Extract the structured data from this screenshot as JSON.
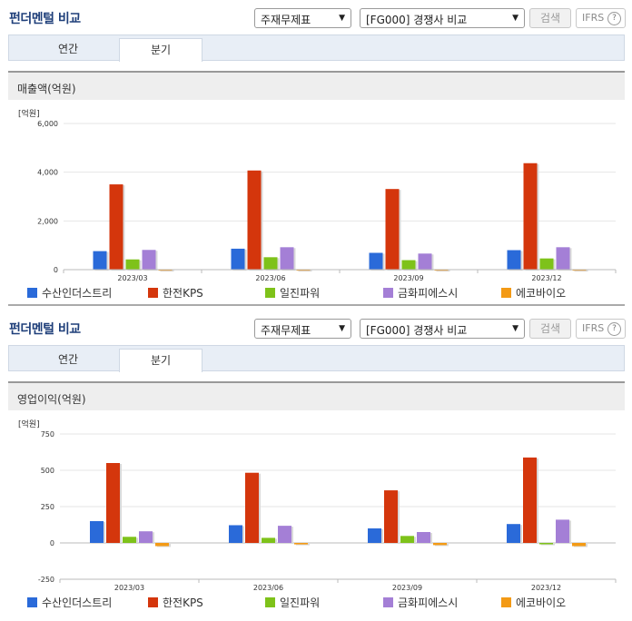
{
  "panels": [
    {
      "title": "펀더멘털 비교",
      "select1": "주재무제표",
      "select2": "[FG000] 경쟁사 비교",
      "search_label": "검색",
      "ifrs_label": "IFRS",
      "help_glyph": "?",
      "tabs": [
        {
          "label": "연간",
          "active": false
        },
        {
          "label": "분기",
          "active": true
        }
      ],
      "section_title": "매출액(억원)",
      "unit": "[억원]"
    },
    {
      "title": "펀더멘털 비교",
      "select1": "주재무제표",
      "select2": "[FG000] 경쟁사 비교",
      "search_label": "검색",
      "ifrs_label": "IFRS",
      "help_glyph": "?",
      "tabs": [
        {
          "label": "연간",
          "active": false
        },
        {
          "label": "분기",
          "active": true
        }
      ],
      "section_title": "영업이익(억원)",
      "unit": "[억원]"
    }
  ],
  "chart_data": [
    {
      "type": "bar",
      "categories": [
        "2023/03",
        "2023/06",
        "2023/09",
        "2023/12"
      ],
      "ylim": [
        0,
        6000
      ],
      "yticks": [
        0,
        2000,
        4000,
        6000
      ],
      "ytick_labels": [
        "0",
        "2,000",
        "4,000",
        "6,000"
      ],
      "ylabel": "[억원]",
      "series": [
        {
          "name": "수산인더스트리",
          "color": "#2a6ad9",
          "values": [
            760,
            860,
            690,
            800
          ]
        },
        {
          "name": "한전KPS",
          "color": "#d4360c",
          "values": [
            3500,
            4070,
            3310,
            4370
          ]
        },
        {
          "name": "일진파워",
          "color": "#7ec21a",
          "values": [
            420,
            510,
            390,
            460
          ]
        },
        {
          "name": "금화피에스시",
          "color": "#a47fd6",
          "values": [
            810,
            920,
            660,
            920
          ]
        },
        {
          "name": "에코바이오",
          "color": "#f39a15",
          "values": [
            15,
            15,
            15,
            15
          ]
        }
      ]
    },
    {
      "type": "bar",
      "categories": [
        "2023/03",
        "2023/06",
        "2023/09",
        "2023/12"
      ],
      "ylim": [
        -250,
        750
      ],
      "yticks": [
        -250,
        0,
        250,
        500,
        750
      ],
      "ytick_labels": [
        "-250",
        "0",
        "250",
        "500",
        "750"
      ],
      "ylabel": "[억원]",
      "series": [
        {
          "name": "수산인더스트리",
          "color": "#2a6ad9",
          "values": [
            150,
            122,
            100,
            130
          ]
        },
        {
          "name": "한전KPS",
          "color": "#d4360c",
          "values": [
            550,
            483,
            362,
            588
          ]
        },
        {
          "name": "일진파워",
          "color": "#7ec21a",
          "values": [
            42,
            35,
            48,
            -3
          ]
        },
        {
          "name": "금화피에스시",
          "color": "#a47fd6",
          "values": [
            80,
            118,
            75,
            160
          ]
        },
        {
          "name": "에코바이오",
          "color": "#f39a15",
          "values": [
            -22,
            -10,
            -15,
            -22
          ]
        }
      ]
    }
  ]
}
